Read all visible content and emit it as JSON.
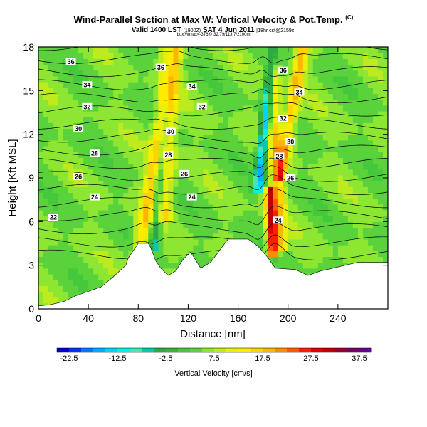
{
  "header": {
    "title": "Wind-Parallel Section at Max W: Vertical Velocity & Pot.Temp.",
    "title_mark": "(C)",
    "valid_prefix": "Valid 1400 LST",
    "valid_utc": "(1900Z)",
    "valid_date": "SAT 4 Jun 2011",
    "valid_suffix": "[18hr cst@2159z]",
    "subline": "box:Wmax=-376@ 32.79/113.7/2100m"
  },
  "chart_data": {
    "type": "heatmap",
    "xlabel": "Distance [nm]",
    "ylabel": "Height [Kft MSL]",
    "xlim": [
      0,
      280
    ],
    "ylim": [
      0,
      18
    ],
    "x_ticks": [
      "0",
      "40",
      "80",
      "120",
      "160",
      "200",
      "240"
    ],
    "y_ticks": [
      "0",
      "3",
      "6",
      "9",
      "12",
      "15",
      "18"
    ],
    "grid": false,
    "colorbar": {
      "label": "Vertical Velocity [cm/s]",
      "tick_labels": [
        "-22.5",
        "-12.5",
        "-2.5",
        "7.5",
        "17.5",
        "27.5",
        "37.5"
      ],
      "min": -25,
      "max": 40,
      "step": 2.5,
      "colors": [
        "#0000c8",
        "#0032ff",
        "#0078ff",
        "#00aaff",
        "#00d2ff",
        "#00f0e6",
        "#46e6b4",
        "#0ac8aa",
        "#2daa46",
        "#37b432",
        "#46c83c",
        "#5ad23c",
        "#8ce632",
        "#beeb1e",
        "#e6f00a",
        "#ffeb00",
        "#ffd200",
        "#ffb400",
        "#ff8c00",
        "#ff5a00",
        "#ff1e00",
        "#e10000",
        "#be0000",
        "#960032",
        "#7d0064",
        "#640096"
      ]
    },
    "background_value": 5,
    "features": [
      {
        "x_base": 80,
        "slope": 2.0,
        "sigma": 6,
        "amp": 11,
        "z_from": 3.5,
        "z_to": 18
      },
      {
        "x_base": 100,
        "slope": 0.5,
        "sigma": 7,
        "amp": 10,
        "z_from": 6,
        "z_to": 18
      },
      {
        "x_base": 92,
        "slope": 1.0,
        "sigma": 4,
        "amp": -12,
        "z_from": 4,
        "z_to": 18
      },
      {
        "x_base": 194,
        "slope": -0.5,
        "sigma": 5,
        "amp": 12,
        "z_from": 4,
        "z_to": 18
      },
      {
        "x_base": 176,
        "slope": 1.2,
        "sigma": 4,
        "amp": -20,
        "z_from": 8,
        "z_to": 18
      },
      {
        "x_base": 188,
        "slope": -0.6,
        "sigma": 4,
        "amp": 24,
        "z_from": 3.5,
        "z_to": 8.5
      },
      {
        "x_base": 194,
        "slope": 2.0,
        "sigma": 5,
        "amp": 13,
        "z_from": 9,
        "z_to": 18
      }
    ],
    "terrain": [
      [
        0,
        0.2
      ],
      [
        10,
        0.3
      ],
      [
        20,
        0.5
      ],
      [
        30,
        0.9
      ],
      [
        40,
        1.2
      ],
      [
        50,
        1.5
      ],
      [
        60,
        2.2
      ],
      [
        70,
        3.0
      ],
      [
        72,
        3.5
      ],
      [
        80,
        4.5
      ],
      [
        88,
        4.5
      ],
      [
        90,
        4.2
      ],
      [
        94,
        3.3
      ],
      [
        98,
        2.8
      ],
      [
        104,
        2.3
      ],
      [
        110,
        2.6
      ],
      [
        116,
        3.4
      ],
      [
        122,
        3.9
      ],
      [
        130,
        2.8
      ],
      [
        138,
        3.2
      ],
      [
        145,
        4.0
      ],
      [
        152,
        4.8
      ],
      [
        168,
        4.8
      ],
      [
        176,
        4.3
      ],
      [
        184,
        3.5
      ],
      [
        188,
        3.0
      ],
      [
        190,
        2.8
      ],
      [
        206,
        2.7
      ],
      [
        216,
        2.3
      ],
      [
        226,
        2.6
      ],
      [
        236,
        2.8
      ],
      [
        246,
        3.0
      ],
      [
        256,
        3.2
      ],
      [
        280,
        3.2
      ]
    ],
    "isentropes": {
      "levels": [
        20,
        21,
        22,
        23,
        24,
        25,
        26,
        27,
        28,
        29,
        30,
        31,
        32,
        33,
        34,
        35,
        36,
        37
      ],
      "z_base": -14.3,
      "dz_per_kelvin": 0.9
    },
    "isentrope_labels": [
      {
        "text": "36",
        "x": 26,
        "z": 17.0
      },
      {
        "text": "34",
        "x": 39,
        "z": 15.4
      },
      {
        "text": "32",
        "x": 39,
        "z": 13.9
      },
      {
        "text": "30",
        "x": 32,
        "z": 12.4
      },
      {
        "text": "28",
        "x": 45,
        "z": 10.7
      },
      {
        "text": "26",
        "x": 32,
        "z": 9.1
      },
      {
        "text": "24",
        "x": 45,
        "z": 7.7
      },
      {
        "text": "22",
        "x": 12,
        "z": 6.3
      },
      {
        "text": "36",
        "x": 98,
        "z": 16.6
      },
      {
        "text": "34",
        "x": 123,
        "z": 15.3
      },
      {
        "text": "32",
        "x": 131,
        "z": 13.9
      },
      {
        "text": "30",
        "x": 106,
        "z": 12.2
      },
      {
        "text": "28",
        "x": 104,
        "z": 10.6
      },
      {
        "text": "26",
        "x": 117,
        "z": 9.3
      },
      {
        "text": "24",
        "x": 123,
        "z": 7.7
      },
      {
        "text": "36",
        "x": 196,
        "z": 16.4
      },
      {
        "text": "34",
        "x": 209,
        "z": 14.9
      },
      {
        "text": "32",
        "x": 196,
        "z": 13.1
      },
      {
        "text": "30",
        "x": 202,
        "z": 11.5
      },
      {
        "text": "28",
        "x": 193,
        "z": 10.5
      },
      {
        "text": "26",
        "x": 202,
        "z": 9.0
      },
      {
        "text": "24",
        "x": 192,
        "z": 6.1
      }
    ]
  }
}
